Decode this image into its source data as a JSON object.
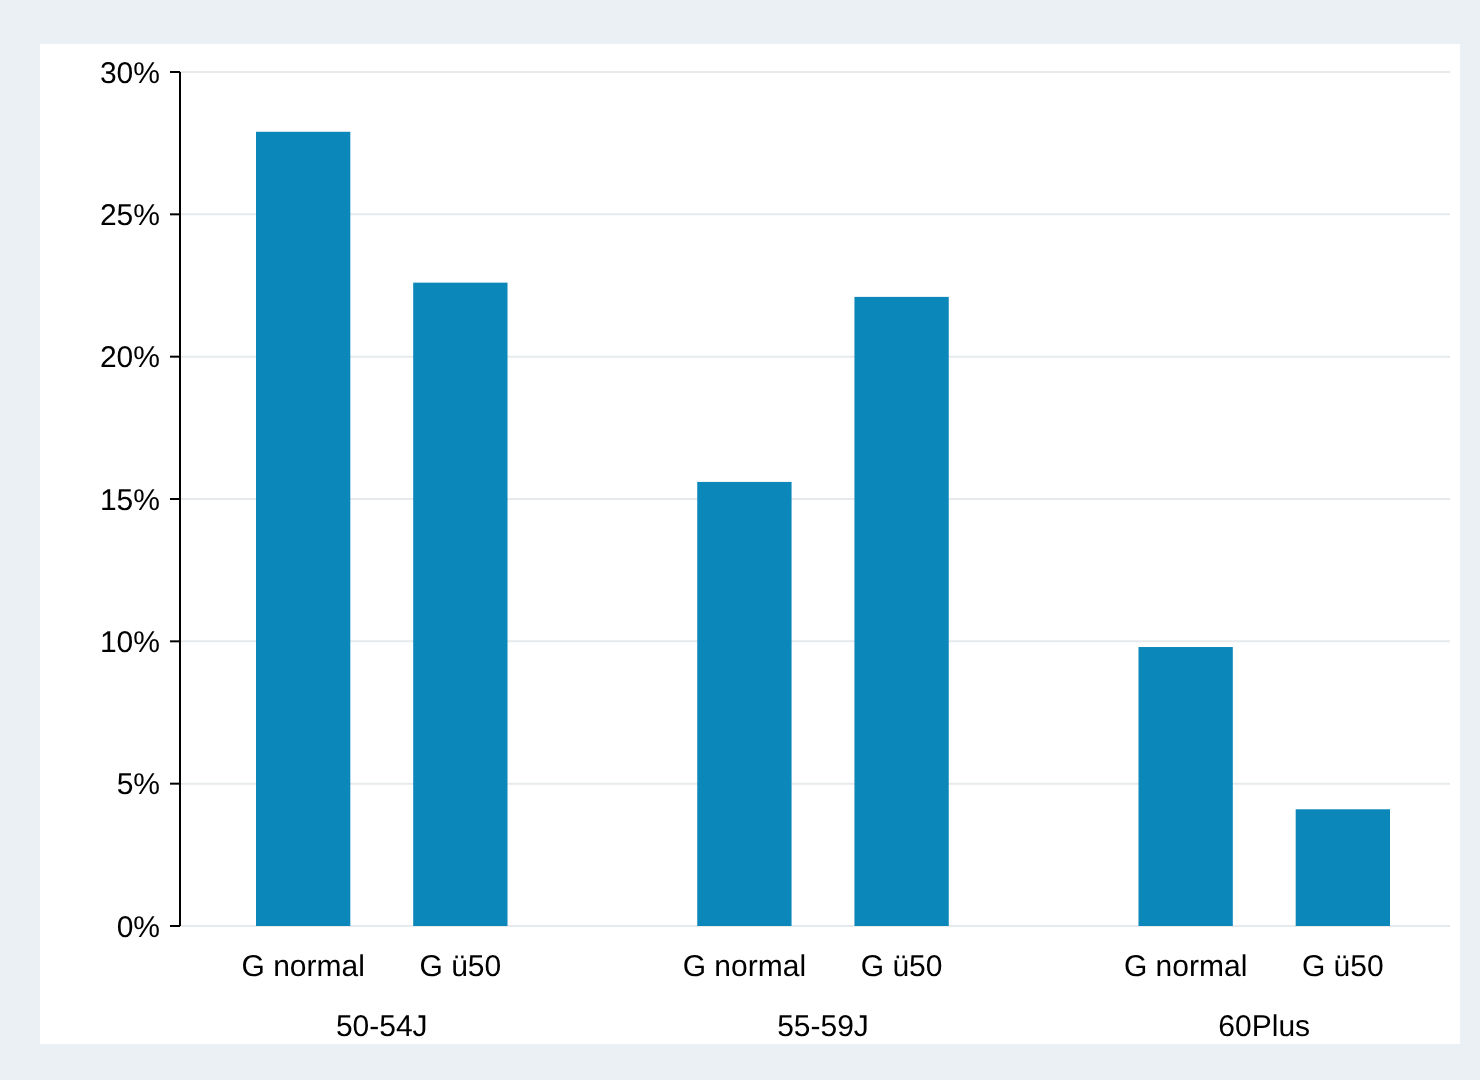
{
  "chart_data": {
    "type": "bar",
    "categories": [
      "50-54J",
      "55-59J",
      "60Plus"
    ],
    "series": [
      {
        "name": "G normal",
        "color": "#0b87ba",
        "values": [
          27.9,
          15.6,
          9.8
        ]
      },
      {
        "name": "G ü50",
        "color": "#0b87ba",
        "values": [
          22.6,
          22.1,
          4.1
        ]
      }
    ],
    "ylim": [
      0,
      30
    ],
    "yticks": [
      {
        "value": 0,
        "label": "0%"
      },
      {
        "value": 5,
        "label": "5%"
      },
      {
        "value": 10,
        "label": "10%"
      },
      {
        "value": 15,
        "label": "15%"
      },
      {
        "value": 20,
        "label": "20%"
      },
      {
        "value": 25,
        "label": "25%"
      },
      {
        "value": 30,
        "label": "30%"
      }
    ],
    "grid": "y"
  }
}
